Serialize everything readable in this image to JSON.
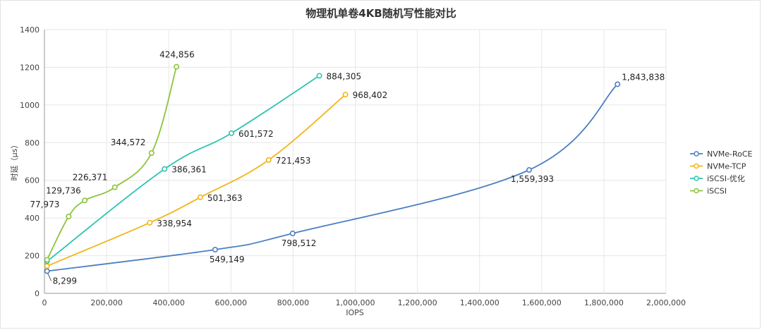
{
  "chart_data": {
    "type": "line",
    "title": "物理机单卷4KB随机写性能对比",
    "xlabel": "IOPS",
    "ylabel": "时延（μs）",
    "xlim": [
      0,
      2000000
    ],
    "ylim": [
      0,
      1400
    ],
    "x_ticks": [
      0,
      200000,
      400000,
      600000,
      800000,
      1000000,
      1200000,
      1400000,
      1600000,
      1800000,
      2000000
    ],
    "x_tick_labels": [
      "0",
      "200,000",
      "400,000",
      "600,000",
      "800,000",
      "1,000,000",
      "1,200,000",
      "1,400,000",
      "1,600,000",
      "1,800,000",
      "2,000,000"
    ],
    "y_ticks": [
      0,
      200,
      400,
      600,
      800,
      1000,
      1200,
      1400
    ],
    "y_tick_labels": [
      "0",
      "200",
      "400",
      "600",
      "800",
      "1000",
      "1200",
      "1400"
    ],
    "grid": true,
    "legend_position": "right",
    "series": [
      {
        "name": "NVMe-RoCE",
        "color": "#4a7fc1",
        "x": [
          8299,
          549149,
          798512,
          1559393,
          1843838
        ],
        "y": [
          118,
          232,
          318,
          655,
          1110
        ],
        "labels": [
          "8,299",
          "549,149",
          "798,512",
          "1,559,393",
          "1,843,838"
        ]
      },
      {
        "name": "NVMe-TCP",
        "color": "#f2b619",
        "x": [
          8299,
          338954,
          501363,
          721453,
          968402
        ],
        "y": [
          145,
          375,
          510,
          708,
          1055
        ],
        "labels": [
          "",
          "338,954",
          "501,363",
          "721,453",
          "968,402"
        ]
      },
      {
        "name": "iSCSI-优化",
        "color": "#2ec4b0",
        "x": [
          8299,
          386361,
          601572,
          884305
        ],
        "y": [
          170,
          660,
          850,
          1155
        ],
        "labels": [
          "",
          "386,361",
          "601,572",
          "884,305"
        ]
      },
      {
        "name": "iSCSI",
        "color": "#8cc43d",
        "x": [
          8299,
          77973,
          129736,
          226371,
          344572,
          424856
        ],
        "y": [
          178,
          408,
          493,
          563,
          745,
          1203
        ],
        "labels": [
          "",
          "77,973",
          "129,736",
          "226,371",
          "344,572",
          "424,856"
        ]
      }
    ]
  }
}
